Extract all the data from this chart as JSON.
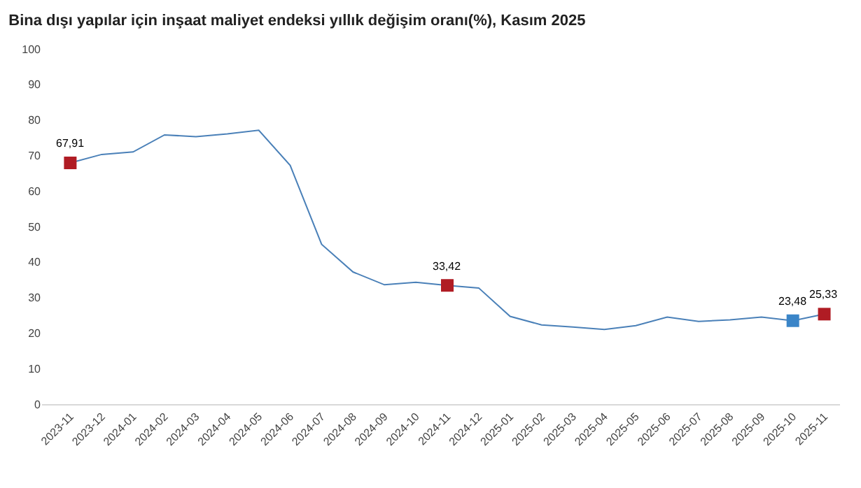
{
  "chart_data": {
    "type": "line",
    "title": "Bina dışı yapılar için inşaat maliyet endeksi yıllık değişim oranı(%), Kasım 2025",
    "categories": [
      "2023-11",
      "2023-12",
      "2024-01",
      "2024-02",
      "2024-03",
      "2024-04",
      "2024-05",
      "2024-06",
      "2024-07",
      "2024-08",
      "2024-09",
      "2024-10",
      "2024-11",
      "2024-12",
      "2025-01",
      "2025-02",
      "2025-03",
      "2025-04",
      "2025-05",
      "2025-06",
      "2025-07",
      "2025-08",
      "2025-09",
      "2025-10",
      "2025-11"
    ],
    "series": [
      {
        "color": "#4a80b8",
        "values": [
          67.91,
          70.3,
          71.0,
          75.8,
          75.3,
          76.1,
          77.1,
          67.2,
          45.0,
          37.2,
          33.6,
          34.3,
          33.42,
          32.7,
          24.7,
          22.3,
          21.7,
          21.0,
          22.1,
          24.5,
          23.3,
          23.7,
          24.5,
          23.48,
          25.33
        ],
        "colors": [
          "#b01c24",
          null,
          null,
          null,
          null,
          null,
          null,
          null,
          null,
          null,
          null,
          null,
          "#b01c24",
          null,
          null,
          null,
          null,
          null,
          null,
          null,
          null,
          null,
          null,
          "#3a85c8",
          "#b01c24"
        ],
        "value_labels": [
          "67,91",
          null,
          null,
          null,
          null,
          null,
          null,
          null,
          null,
          null,
          null,
          null,
          "33,42",
          null,
          null,
          null,
          null,
          null,
          null,
          null,
          null,
          null,
          null,
          "23,48",
          "25,33"
        ]
      }
    ],
    "ylim": [
      0,
      100
    ],
    "yticks": [
      0,
      10,
      20,
      30,
      40,
      50,
      60,
      70,
      80,
      90,
      100
    ],
    "line_style": "solid"
  }
}
